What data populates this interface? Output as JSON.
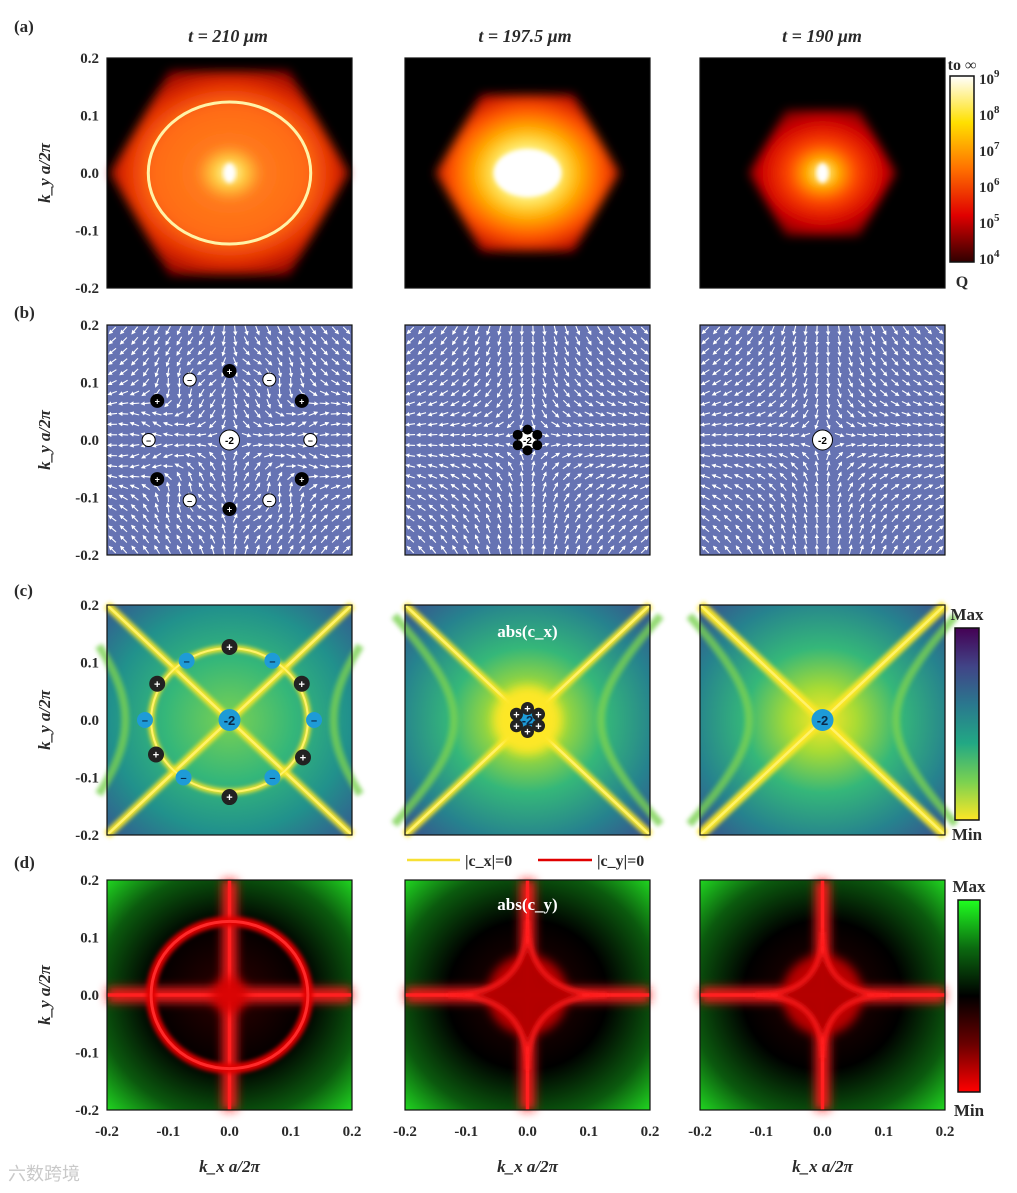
{
  "chart_data": {
    "type": "heatmap",
    "panel_labels": [
      "(a)",
      "(b)",
      "(c)",
      "(d)"
    ],
    "column_titles": [
      "t = 210 μm",
      "t = 197.5 μm",
      "t = 190 μm"
    ],
    "xlabel": "k_x a/2π",
    "ylabel": "k_y a/2π",
    "x_range": [
      -0.2,
      0.2
    ],
    "y_range": [
      -0.2,
      0.2
    ],
    "x_ticks": [
      "-0.2",
      "-0.1",
      "0.0",
      "0.1",
      "0.2"
    ],
    "y_ticks": [
      "0.2",
      "0.1",
      "0.0",
      "-0.1",
      "-0.2"
    ],
    "row_a": {
      "quantity": "Q",
      "colorbar_top": "to ∞",
      "colorbar_label": "Q",
      "colorbar_ticks": [
        "10^9",
        "10^8",
        "10^7",
        "10^6",
        "10^5",
        "10^4"
      ],
      "colors": [
        "#000000",
        "#7a0000",
        "#e00000",
        "#ff6a00",
        "#ffd000",
        "#ffffff"
      ],
      "bic_ring_radius": [
        0.13,
        null,
        null
      ]
    },
    "row_b": {
      "background": "#6673b3",
      "arrow_color": "#ffffff",
      "panels": [
        {
          "charges": [
            {
              "x": 0.0,
              "y": 0.0,
              "label": "-2",
              "kind": "minus",
              "size": "big"
            },
            {
              "x": 0.0,
              "y": 0.12,
              "label": "+",
              "kind": "plus"
            },
            {
              "x": 0.0,
              "y": -0.12,
              "label": "+",
              "kind": "plus"
            },
            {
              "x": -0.118,
              "y": 0.068,
              "label": "+",
              "kind": "plus"
            },
            {
              "x": 0.118,
              "y": 0.068,
              "label": "+",
              "kind": "plus"
            },
            {
              "x": -0.118,
              "y": -0.068,
              "label": "+",
              "kind": "plus"
            },
            {
              "x": 0.118,
              "y": -0.068,
              "label": "+",
              "kind": "plus"
            },
            {
              "x": -0.065,
              "y": 0.105,
              "label": "–",
              "kind": "minus"
            },
            {
              "x": 0.065,
              "y": 0.105,
              "label": "–",
              "kind": "minus"
            },
            {
              "x": -0.132,
              "y": 0.0,
              "label": "–",
              "kind": "minus"
            },
            {
              "x": 0.132,
              "y": 0.0,
              "label": "–",
              "kind": "minus"
            },
            {
              "x": -0.065,
              "y": -0.105,
              "label": "–",
              "kind": "minus"
            },
            {
              "x": 0.065,
              "y": -0.105,
              "label": "–",
              "kind": "minus"
            }
          ]
        },
        {
          "charges": [
            {
              "x": 0.0,
              "y": 0.0,
              "label": "-2",
              "kind": "minus",
              "size": "big"
            },
            {
              "x": 0.0,
              "y": 0.018,
              "label": "+",
              "kind": "plus",
              "size": "tiny"
            },
            {
              "x": 0.0,
              "y": -0.018,
              "label": "+",
              "kind": "plus",
              "size": "tiny"
            },
            {
              "x": -0.016,
              "y": 0.009,
              "label": "+",
              "kind": "plus",
              "size": "tiny"
            },
            {
              "x": 0.016,
              "y": 0.009,
              "label": "+",
              "kind": "plus",
              "size": "tiny"
            },
            {
              "x": -0.016,
              "y": -0.009,
              "label": "+",
              "kind": "plus",
              "size": "tiny"
            },
            {
              "x": 0.016,
              "y": -0.009,
              "label": "+",
              "kind": "plus",
              "size": "tiny"
            }
          ]
        },
        {
          "charges": [
            {
              "x": 0.0,
              "y": 0.0,
              "label": "-2",
              "kind": "minus",
              "size": "big"
            }
          ]
        }
      ]
    },
    "row_c": {
      "quantity": "abs(c_x)",
      "title_middle": "abs(c_x)",
      "colorbar_max": "Max",
      "colorbar_min": "Min",
      "colors": [
        "#fde725",
        "#7ad151",
        "#22a884",
        "#2a788e",
        "#414487",
        "#440154"
      ],
      "charge_colors": {
        "minus": "#1e9bd7",
        "plus": "#222222"
      },
      "panels": [
        {
          "charges": [
            {
              "x": 0.0,
              "y": 0.0,
              "label": "-2",
              "kind": "minus",
              "size": "big"
            },
            {
              "x": 0.0,
              "y": 0.127,
              "label": "+",
              "kind": "plus"
            },
            {
              "x": 0.0,
              "y": -0.134,
              "label": "+",
              "kind": "plus"
            },
            {
              "x": -0.118,
              "y": 0.063,
              "label": "+",
              "kind": "plus"
            },
            {
              "x": 0.118,
              "y": 0.063,
              "label": "+",
              "kind": "plus"
            },
            {
              "x": -0.12,
              "y": -0.06,
              "label": "+",
              "kind": "plus"
            },
            {
              "x": 0.12,
              "y": -0.065,
              "label": "+",
              "kind": "plus"
            },
            {
              "x": -0.07,
              "y": 0.103,
              "label": "–",
              "kind": "minus"
            },
            {
              "x": 0.07,
              "y": 0.103,
              "label": "–",
              "kind": "minus"
            },
            {
              "x": -0.138,
              "y": 0.0,
              "label": "–",
              "kind": "minus"
            },
            {
              "x": 0.138,
              "y": 0.0,
              "label": "–",
              "kind": "minus"
            },
            {
              "x": -0.075,
              "y": -0.1,
              "label": "–",
              "kind": "minus"
            },
            {
              "x": 0.07,
              "y": -0.1,
              "label": "–",
              "kind": "minus"
            }
          ]
        },
        {
          "charges": [
            {
              "x": 0.0,
              "y": 0.0,
              "label": "-2",
              "kind": "minus",
              "size": "big"
            },
            {
              "x": 0.0,
              "y": 0.02,
              "label": "+",
              "kind": "plus",
              "size": "small"
            },
            {
              "x": 0.0,
              "y": -0.02,
              "label": "+",
              "kind": "plus",
              "size": "small"
            },
            {
              "x": -0.018,
              "y": 0.01,
              "label": "+",
              "kind": "plus",
              "size": "small"
            },
            {
              "x": 0.018,
              "y": 0.01,
              "label": "+",
              "kind": "plus",
              "size": "small"
            },
            {
              "x": -0.018,
              "y": -0.01,
              "label": "+",
              "kind": "plus",
              "size": "small"
            },
            {
              "x": 0.018,
              "y": -0.01,
              "label": "+",
              "kind": "plus",
              "size": "small"
            }
          ]
        },
        {
          "charges": [
            {
              "x": 0.0,
              "y": 0.0,
              "label": "-2",
              "kind": "minus",
              "size": "big"
            }
          ]
        }
      ]
    },
    "row_d": {
      "quantity": "abs(c_y)",
      "title_middle": "abs(c_y)",
      "colorbar_max": "Max",
      "colorbar_min": "Min",
      "colors": [
        "#ff0000",
        "#6a0000",
        "#000000",
        "#0b6a10",
        "#20ff20"
      ]
    },
    "legend": [
      {
        "label": "|c_x|=0",
        "color": "#f7e034"
      },
      {
        "label": "|c_y|=0",
        "color": "#e00000"
      }
    ]
  },
  "watermark": "六数跨境"
}
